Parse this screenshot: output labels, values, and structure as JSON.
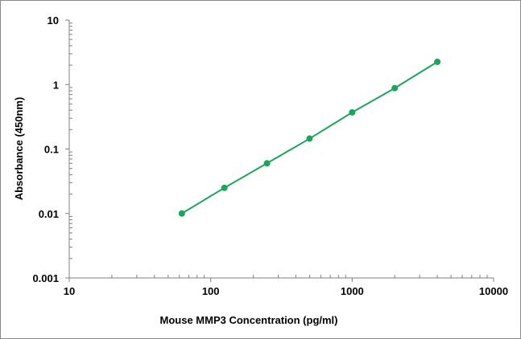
{
  "chart_data": {
    "type": "scatter",
    "title": "",
    "xlabel": "Mouse MMP3 Concentration (pg/ml)",
    "ylabel": "Absorbance (450nm)",
    "xscale": "log",
    "yscale": "log",
    "xlim": [
      10,
      10000
    ],
    "ylim": [
      0.001,
      10
    ],
    "x_ticks": [
      "10",
      "100",
      "1000",
      "10000"
    ],
    "y_ticks": [
      "0.001",
      "0.01",
      "0.1",
      "1",
      "10"
    ],
    "grid": false,
    "legend": "none",
    "fit_line": true,
    "series": [
      {
        "color": "#1aa55a",
        "x": [
          62.5,
          125,
          250,
          500,
          1000,
          2000,
          4000
        ],
        "y": [
          0.01,
          0.025,
          0.06,
          0.145,
          0.37,
          0.88,
          2.25
        ]
      }
    ]
  }
}
